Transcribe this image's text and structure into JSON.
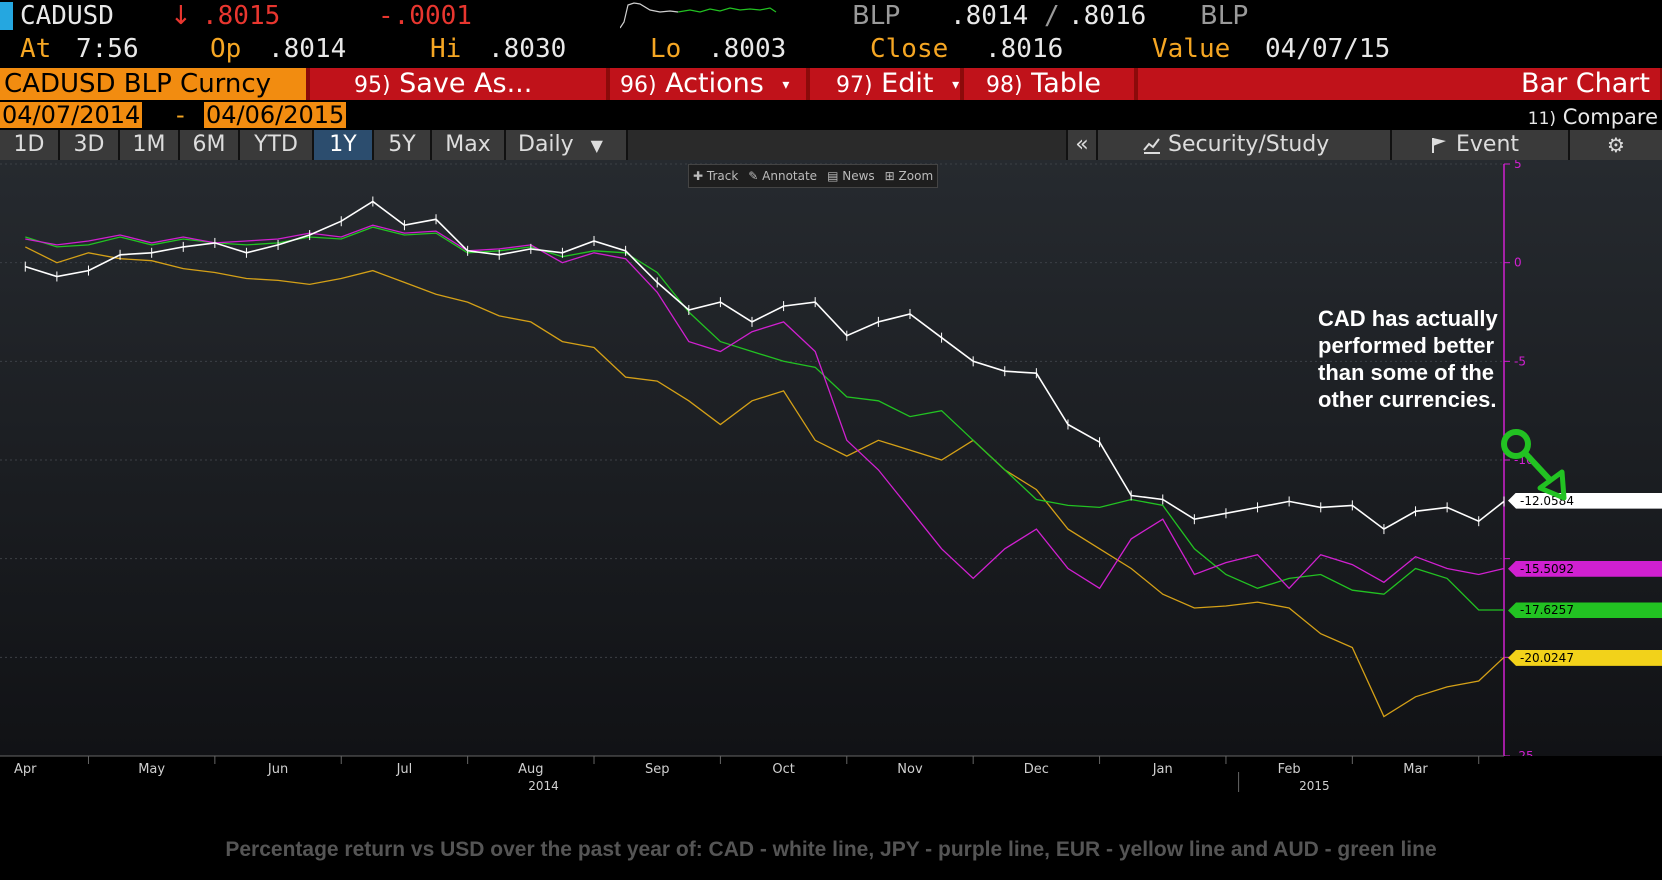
{
  "header": {
    "ticker": "CADUSD",
    "arrow": "↓",
    "last": ".8015",
    "change": "-.0001",
    "bid_source": "BLP",
    "bid": ".8014",
    "separator": "/",
    "ask": ".8016",
    "ask_source": "BLP"
  },
  "quote": {
    "at_label": "At",
    "at_value": "7:56",
    "open_label": "Op",
    "open_value": ".8014",
    "high_label": "Hi",
    "high_value": ".8030",
    "low_label": "Lo",
    "low_value": ".8003",
    "close_label": "Close",
    "close_value": ".8016",
    "value_label": "Value",
    "value_date": "04/07/15"
  },
  "menu": {
    "security": "CADUSD BLP Curncy",
    "items": [
      {
        "num": "95)",
        "label": "Save As..."
      },
      {
        "num": "96)",
        "label": "Actions",
        "dropdown": true
      },
      {
        "num": "97)",
        "label": "Edit",
        "dropdown": true
      },
      {
        "num": "98)",
        "label": "Table"
      }
    ],
    "chart_type": "Bar Chart"
  },
  "date_range": {
    "start": "04/07/2014",
    "dash": "-",
    "end": "04/06/2015",
    "compare_num": "11)",
    "compare_label": "Compare"
  },
  "periods": [
    "1D",
    "3D",
    "1M",
    "6M",
    "YTD",
    "1Y",
    "5Y",
    "Max"
  ],
  "active_period": "1Y",
  "frequency": "Daily",
  "right_tools": {
    "collapse": "«",
    "security_study": "Security/Study",
    "event": "Event"
  },
  "chart_toolbar": [
    "Track",
    "Annotate",
    "News",
    "Zoom"
  ],
  "chart_data": {
    "type": "line",
    "ylabel": "",
    "ylim": [
      -25,
      5
    ],
    "yticks": [
      5,
      0,
      -5,
      -10,
      -15,
      -20,
      -25
    ],
    "ytick_labels": [
      "5",
      "0",
      "-5",
      "-10",
      "",
      "",
      "-25"
    ],
    "x_labels": [
      "Apr",
      "May",
      "Jun",
      "Jul",
      "Aug",
      "Sep",
      "Oct",
      "Nov",
      "Dec",
      "Jan",
      "Feb",
      "Mar"
    ],
    "x_positions": [
      0,
      1,
      2,
      3,
      4,
      5,
      6,
      7,
      8,
      9,
      10,
      11
    ],
    "x_range": [
      -0.2,
      11.7
    ],
    "year_labels": [
      {
        "label": "2014",
        "x": 4.1
      },
      {
        "label": "2015",
        "x": 10.2
      }
    ],
    "series": [
      {
        "color": "#ffffff",
        "x": [
          0,
          0.25,
          0.5,
          0.75,
          1,
          1.25,
          1.5,
          1.75,
          2,
          2.25,
          2.5,
          2.75,
          3,
          3.25,
          3.5,
          3.75,
          4,
          4.25,
          4.5,
          4.75,
          5,
          5.25,
          5.5,
          5.75,
          6,
          6.25,
          6.5,
          6.75,
          7,
          7.25,
          7.5,
          7.75,
          8,
          8.25,
          8.5,
          8.75,
          9,
          9.25,
          9.5,
          9.75,
          10,
          10.25,
          10.5,
          10.75,
          11,
          11.25,
          11.5,
          11.7
        ],
        "values": [
          -0.2,
          -0.7,
          -0.4,
          0.4,
          0.5,
          0.8,
          1.0,
          0.5,
          0.9,
          1.4,
          2.1,
          3.1,
          1.9,
          2.2,
          0.6,
          0.4,
          0.7,
          0.5,
          1.1,
          0.6,
          -1.0,
          -2.4,
          -2.0,
          -3.0,
          -2.2,
          -2.0,
          -3.7,
          -3.0,
          -2.6,
          -3.8,
          -5.0,
          -5.5,
          -5.6,
          -8.2,
          -9.1,
          -11.8,
          -12.0,
          -13.0,
          -12.7,
          -12.4,
          -12.1,
          -12.4,
          -12.3,
          -13.5,
          -12.6,
          -12.4,
          -13.1,
          -12.1
        ]
      },
      {
        "color": "#d020d0",
        "x": [
          0,
          0.25,
          0.5,
          0.75,
          1,
          1.25,
          1.5,
          1.75,
          2,
          2.25,
          2.5,
          2.75,
          3,
          3.25,
          3.5,
          3.75,
          4,
          4.25,
          4.5,
          4.75,
          5,
          5.25,
          5.5,
          5.75,
          6,
          6.25,
          6.5,
          6.75,
          7,
          7.25,
          7.5,
          7.75,
          8,
          8.25,
          8.5,
          8.75,
          9,
          9.25,
          9.5,
          9.75,
          10,
          10.25,
          10.5,
          10.75,
          11,
          11.25,
          11.5,
          11.7
        ],
        "values": [
          1.2,
          0.9,
          1.1,
          1.4,
          1.0,
          1.3,
          1.0,
          1.1,
          1.2,
          1.5,
          1.3,
          1.9,
          1.5,
          1.6,
          0.6,
          0.7,
          0.9,
          0.0,
          0.5,
          0.2,
          -1.5,
          -4.0,
          -4.5,
          -3.5,
          -3.0,
          -4.5,
          -9.0,
          -10.5,
          -12.5,
          -14.5,
          -16.0,
          -14.5,
          -13.5,
          -15.5,
          -16.5,
          -14.0,
          -13.0,
          -15.8,
          -15.2,
          -14.8,
          -16.5,
          -14.8,
          -15.3,
          -16.2,
          -14.9,
          -15.5,
          -15.8,
          -15.5
        ]
      },
      {
        "color": "#d4a017",
        "x": [
          0,
          0.25,
          0.5,
          0.75,
          1,
          1.25,
          1.5,
          1.75,
          2,
          2.25,
          2.5,
          2.75,
          3,
          3.25,
          3.5,
          3.75,
          4,
          4.25,
          4.5,
          4.75,
          5,
          5.25,
          5.5,
          5.75,
          6,
          6.25,
          6.5,
          6.75,
          7,
          7.25,
          7.5,
          7.75,
          8,
          8.25,
          8.5,
          8.75,
          9,
          9.25,
          9.5,
          9.75,
          10,
          10.25,
          10.5,
          10.75,
          11,
          11.25,
          11.5,
          11.7
        ],
        "values": [
          0.8,
          0.0,
          0.5,
          0.2,
          0.1,
          -0.3,
          -0.5,
          -0.8,
          -0.9,
          -1.1,
          -0.8,
          -0.4,
          -1.0,
          -1.6,
          -2.0,
          -2.7,
          -3.0,
          -4.0,
          -4.3,
          -5.8,
          -6.0,
          -7.0,
          -8.2,
          -7.0,
          -6.5,
          -9.0,
          -9.8,
          -9.0,
          -9.5,
          -10.0,
          -9.0,
          -10.5,
          -11.5,
          -13.5,
          -14.5,
          -15.5,
          -16.8,
          -17.5,
          -17.4,
          -17.2,
          -17.5,
          -18.8,
          -19.5,
          -23.0,
          -22.0,
          -21.5,
          -21.2,
          -20.0
        ]
      },
      {
        "color": "#22c222",
        "x": [
          0,
          0.25,
          0.5,
          0.75,
          1,
          1.25,
          1.5,
          1.75,
          2,
          2.25,
          2.5,
          2.75,
          3,
          3.25,
          3.5,
          3.75,
          4,
          4.25,
          4.5,
          4.75,
          5,
          5.25,
          5.5,
          5.75,
          6,
          6.25,
          6.5,
          6.75,
          7,
          7.25,
          7.5,
          7.75,
          8,
          8.25,
          8.5,
          8.75,
          9,
          9.25,
          9.5,
          9.75,
          10,
          10.25,
          10.5,
          10.75,
          11,
          11.25,
          11.5,
          11.7
        ],
        "values": [
          1.3,
          0.8,
          0.9,
          1.3,
          0.9,
          1.2,
          1.0,
          0.9,
          1.0,
          1.3,
          1.2,
          1.8,
          1.4,
          1.5,
          0.5,
          0.6,
          0.8,
          0.3,
          0.6,
          0.5,
          -0.5,
          -2.5,
          -4.0,
          -4.5,
          -5.0,
          -5.3,
          -6.8,
          -7.0,
          -7.8,
          -7.5,
          -9.0,
          -10.5,
          -12.0,
          -12.3,
          -12.4,
          -12.0,
          -12.3,
          -14.5,
          -15.8,
          -16.5,
          -16.0,
          -15.8,
          -16.6,
          -16.8,
          -15.5,
          -16.0,
          -17.6,
          -17.6
        ]
      }
    ],
    "last_values": [
      {
        "label": "-12.0584",
        "value": -12.0584,
        "color": "#ffffff"
      },
      {
        "label": "-15.5092",
        "value": -15.5092,
        "color": "#d020d0"
      },
      {
        "label": "-17.6257",
        "value": -17.6257,
        "color": "#22c222"
      },
      {
        "label": "-20.0247",
        "value": -20.0247,
        "color": "#f2d21a"
      }
    ]
  },
  "annotation": {
    "lines": [
      "CAD has actually",
      "performed better",
      "than some of the",
      "other currencies."
    ],
    "arrow_color": "#22c222"
  },
  "caption": "Percentage return vs USD over the past year of: CAD - white line, JPY - purple line, EUR - yellow line and AUD - green line"
}
